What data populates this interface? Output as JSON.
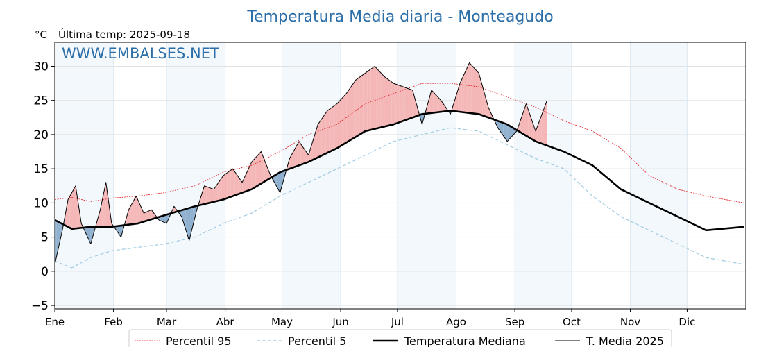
{
  "chart_data": {
    "type": "line",
    "title": "Temperatura Media diaria - Monteagudo",
    "unit_label": "°C",
    "subtitle": "Última temp: 2025-09-18",
    "watermark": "WWW.EMBALSES.NET",
    "x_axis": {
      "range_days": [
        1,
        366
      ],
      "month_ticks": [
        {
          "label": "Ene",
          "day": 1
        },
        {
          "label": "Feb",
          "day": 32
        },
        {
          "label": "Mar",
          "day": 60
        },
        {
          "label": "Abr",
          "day": 91
        },
        {
          "label": "May",
          "day": 121
        },
        {
          "label": "Jun",
          "day": 152
        },
        {
          "label": "Jul",
          "day": 182
        },
        {
          "label": "Ago",
          "day": 213
        },
        {
          "label": "Sep",
          "day": 244
        },
        {
          "label": "Oct",
          "day": 274
        },
        {
          "label": "Nov",
          "day": 305
        },
        {
          "label": "Dic",
          "day": 335
        }
      ]
    },
    "y_axis": {
      "range": [
        -5.5,
        33.5
      ],
      "ticks": [
        -5,
        0,
        5,
        10,
        15,
        20,
        25,
        30
      ],
      "tick_labels": [
        "−5",
        "0",
        "5",
        "10",
        "15",
        "20",
        "25",
        "30"
      ]
    },
    "grid": true,
    "legend_position": "bottom-center",
    "series": [
      {
        "name": "Percentil 95",
        "color": "#e31a1c",
        "style": "dotted",
        "x": [
          1,
          10,
          20,
          31,
          45,
          59,
          75,
          90,
          105,
          120,
          135,
          150,
          165,
          180,
          195,
          210,
          225,
          240,
          255,
          270,
          285,
          300,
          315,
          330,
          345,
          365
        ],
        "y": [
          10.5,
          10.8,
          10.2,
          10.7,
          11.0,
          11.5,
          12.5,
          14.5,
          15.5,
          17.5,
          20.0,
          21.5,
          24.5,
          26.0,
          27.5,
          27.5,
          27.0,
          25.5,
          24.0,
          22.0,
          20.5,
          18.0,
          14.0,
          12.0,
          11.0,
          10.0
        ]
      },
      {
        "name": "Percentil 5",
        "color": "#9ecae1",
        "style": "dashed",
        "x": [
          1,
          10,
          20,
          31,
          45,
          59,
          75,
          90,
          105,
          120,
          135,
          150,
          165,
          180,
          195,
          210,
          225,
          240,
          255,
          270,
          285,
          300,
          315,
          330,
          345,
          365
        ],
        "y": [
          1.5,
          0.5,
          2.0,
          3.0,
          3.5,
          4.0,
          5.0,
          7.0,
          8.5,
          11.0,
          13.0,
          15.0,
          17.0,
          19.0,
          20.0,
          21.0,
          20.5,
          18.5,
          16.5,
          15.0,
          11.0,
          8.0,
          6.0,
          4.0,
          2.0,
          1.0
        ]
      },
      {
        "name": "Temperatura Mediana",
        "color": "#000000",
        "style": "solid-thick",
        "x": [
          1,
          10,
          20,
          31,
          45,
          59,
          75,
          90,
          105,
          120,
          135,
          150,
          165,
          180,
          195,
          210,
          225,
          240,
          255,
          270,
          285,
          300,
          315,
          330,
          345,
          365
        ],
        "y": [
          7.5,
          6.2,
          6.5,
          6.5,
          7.0,
          8.2,
          9.5,
          10.5,
          12.0,
          14.5,
          16.0,
          18.0,
          20.5,
          21.5,
          23.0,
          23.5,
          23.0,
          21.5,
          19.0,
          17.5,
          15.5,
          12.0,
          10.0,
          8.0,
          6.0,
          6.5
        ]
      },
      {
        "name": "T. Media 2025",
        "color": "#000000",
        "style": "solid-thin",
        "x": [
          1,
          5,
          8,
          12,
          15,
          20,
          25,
          28,
          31,
          36,
          40,
          44,
          48,
          52,
          56,
          60,
          64,
          68,
          72,
          76,
          80,
          85,
          90,
          95,
          100,
          105,
          110,
          115,
          120,
          125,
          130,
          135,
          140,
          145,
          150,
          155,
          160,
          165,
          170,
          175,
          180,
          185,
          190,
          195,
          200,
          205,
          210,
          215,
          220,
          225,
          230,
          235,
          240,
          245,
          250,
          255,
          261
        ],
        "y": [
          1.0,
          6.0,
          10.5,
          12.5,
          7.0,
          4.0,
          9.0,
          13.0,
          7.0,
          5.0,
          9.0,
          11.0,
          8.5,
          9.0,
          7.5,
          7.0,
          9.5,
          8.0,
          4.5,
          9.0,
          12.5,
          12.0,
          14.0,
          15.0,
          13.0,
          16.0,
          17.5,
          14.0,
          11.5,
          16.5,
          19.0,
          17.0,
          21.5,
          23.5,
          24.5,
          26.0,
          28.0,
          29.0,
          30.0,
          28.5,
          27.5,
          27.0,
          26.5,
          21.5,
          26.5,
          25.0,
          23.0,
          27.5,
          30.5,
          29.0,
          24.0,
          21.0,
          19.0,
          20.5,
          24.5,
          20.5,
          25.0
        ]
      }
    ]
  }
}
